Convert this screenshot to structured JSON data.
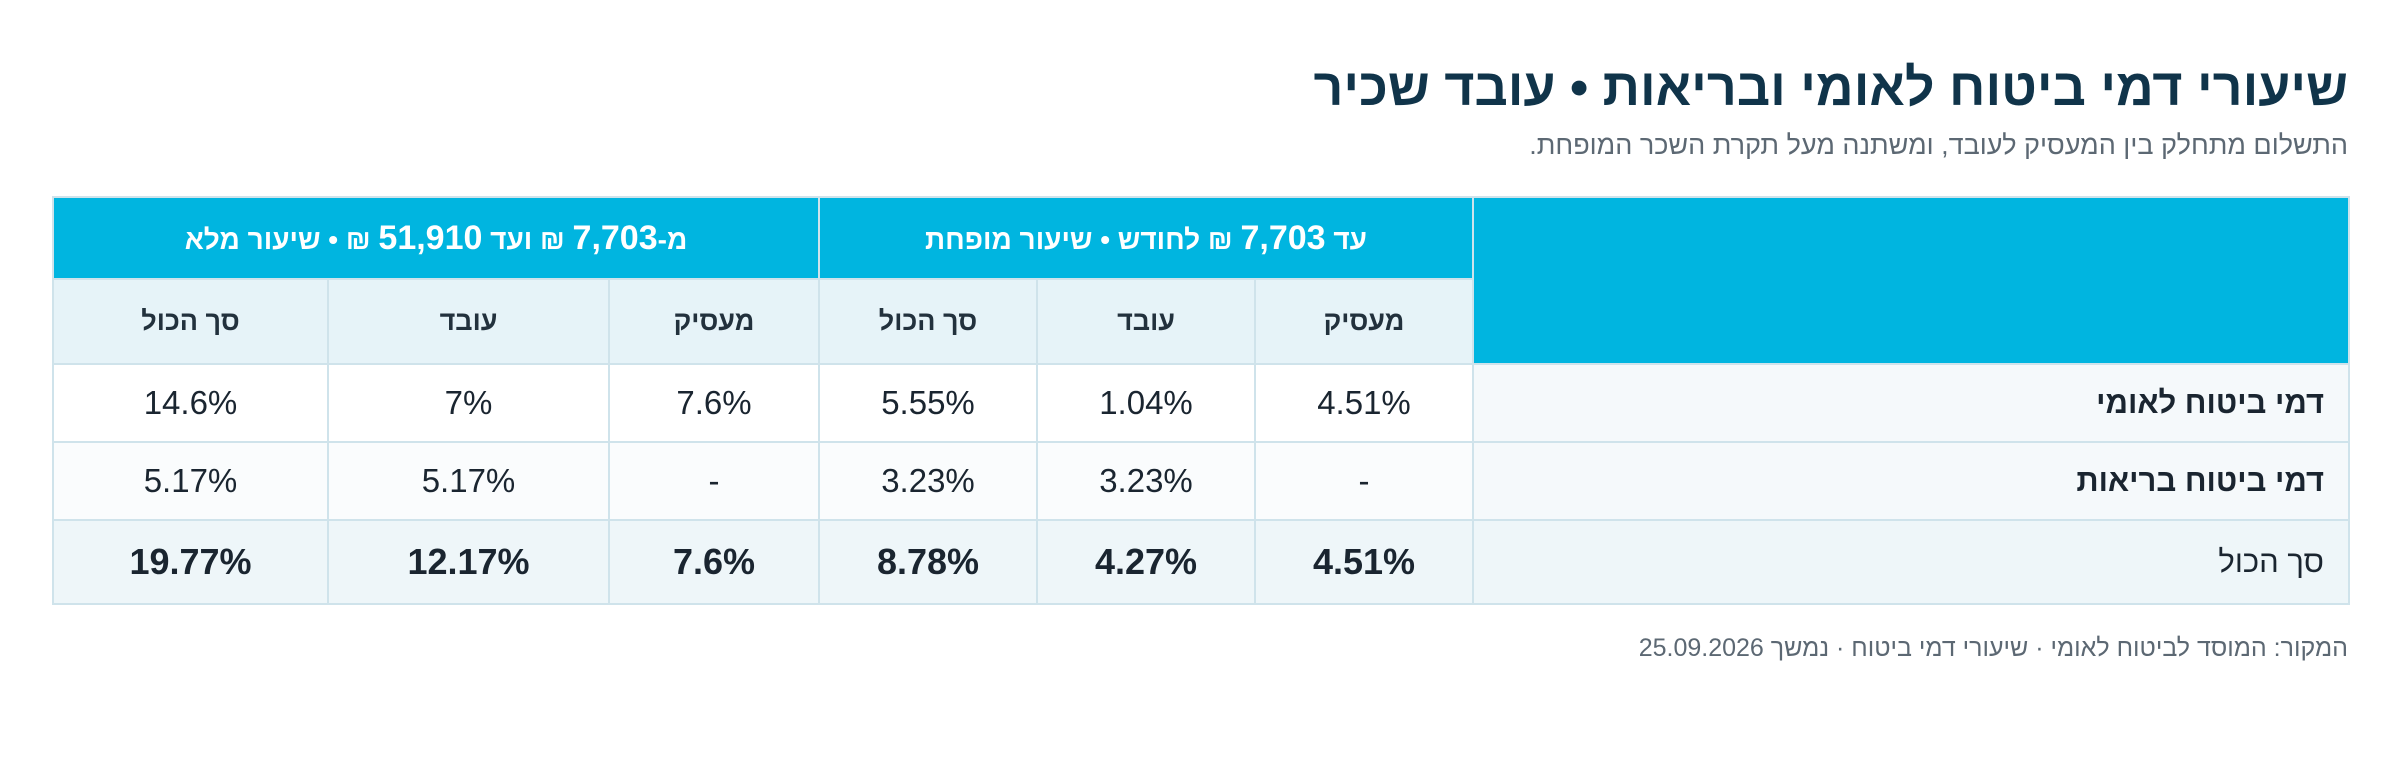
{
  "title": "שיעורי דמי ביטוח לאומי ובריאות • עובד שכיר",
  "subtitle": "התשלום מתחלק בין המעסיק לעובד, ומשתנה מעל תקרת השכר המופחת.",
  "table": {
    "groups": [
      {
        "prefix": "עד ",
        "amount": "7,703",
        "suffix": " ₪ לחודש • שיעור מופחת"
      },
      {
        "prefix": "מ-",
        "amount": "7,703",
        "middle": " ₪ ועד ",
        "amount2": "51,910",
        "suffix": " ₪ • שיעור מלא"
      }
    ],
    "columns": [
      "מעסיק",
      "עובד",
      "סך הכול",
      "מעסיק",
      "עובד",
      "סך הכול"
    ],
    "rows": [
      {
        "label": "דמי ביטוח לאומי",
        "values": [
          "4.51%",
          "1.04%",
          "5.55%",
          "7.6%",
          "7%",
          "14.6%"
        ]
      },
      {
        "label": "דמי ביטוח בריאות",
        "values": [
          "-",
          "3.23%",
          "3.23%",
          "-",
          "5.17%",
          "5.17%"
        ]
      },
      {
        "label": "סך הכול",
        "values": [
          "4.51%",
          "4.27%",
          "8.78%",
          "7.6%",
          "12.17%",
          "19.77%"
        ]
      }
    ]
  },
  "source": "המקור: המוסד לביטוח לאומי · שיעורי דמי ביטוח · נמשך 25.09.2026",
  "colors": {
    "header": "#00b5e0",
    "subheader": "#e6f3f8",
    "title": "#10344a"
  }
}
